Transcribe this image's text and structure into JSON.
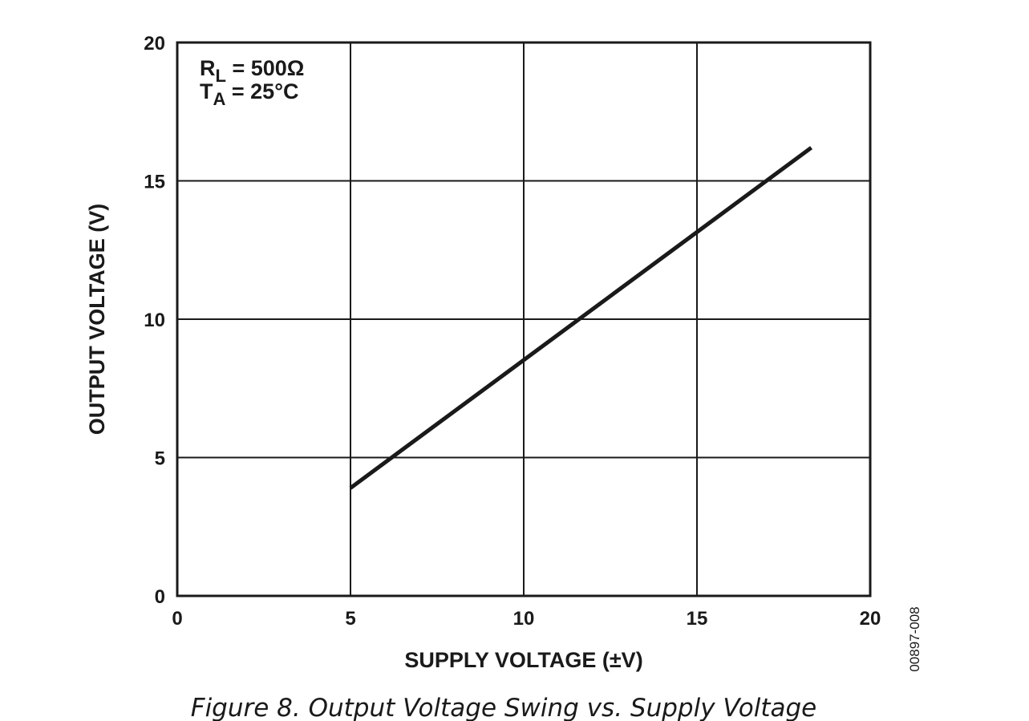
{
  "chart_data": {
    "type": "line",
    "title": "",
    "xlabel": "SUPPLY VOLTAGE (±V)",
    "ylabel": "OUTPUT VOLTAGE (V)",
    "xlim": [
      0,
      20
    ],
    "ylim": [
      0,
      20
    ],
    "x_ticks": [
      0,
      5,
      10,
      15,
      20
    ],
    "y_ticks": [
      0,
      5,
      10,
      15,
      20
    ],
    "x_tick_labels": [
      "0",
      "5",
      "10",
      "15",
      "20"
    ],
    "y_tick_labels": [
      "0",
      "5",
      "10",
      "15",
      "20"
    ],
    "grid": true,
    "series": [
      {
        "x": [
          5,
          18.3
        ],
        "y": [
          3.9,
          16.2
        ],
        "color": "#1a1a1a"
      }
    ],
    "annotations": {
      "line1_main": "R",
      "line1_sub": "L",
      "line1_rest": " = 500Ω",
      "line2_main": "T",
      "line2_sub": "A",
      "line2_rest": " = 25°C",
      "position": "top-left"
    }
  },
  "figure_code": "00897-008",
  "caption": "Figure 8. Output Voltage Swing vs. Supply Voltage"
}
